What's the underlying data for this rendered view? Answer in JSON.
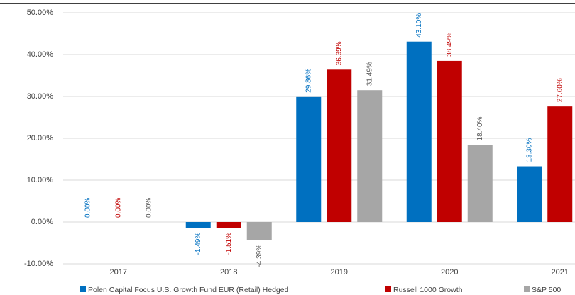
{
  "chart_data": {
    "type": "bar",
    "categories": [
      "2017",
      "2018",
      "2019",
      "2020",
      "2021"
    ],
    "series": [
      {
        "name": "Polen Capital Focus U.S. Growth Fund EUR (Retail) Hedged",
        "color": "#0070c0",
        "values": [
          0,
          -1.49,
          29.86,
          43.1,
          13.3
        ],
        "value_labels": [
          "0.00%",
          "-1.49%",
          "29.86%",
          "43.10%",
          "13.30%"
        ]
      },
      {
        "name": "Russell 1000 Growth",
        "color": "#c00000",
        "values": [
          0,
          -1.51,
          36.39,
          38.49,
          27.6
        ],
        "value_labels": [
          "0.00%",
          "-1.51%",
          "36.39%",
          "38.49%",
          "27.60%"
        ]
      },
      {
        "name": "S&P 500",
        "color": "#a6a6a6",
        "values": [
          0,
          -4.39,
          31.49,
          18.4,
          null
        ],
        "value_labels": [
          "0.00%",
          "-4.39%",
          "31.49%",
          "18.40%",
          null
        ]
      }
    ],
    "ylim": [
      -10,
      50
    ],
    "yticks": [
      {
        "value": -10,
        "label": "-10.00%"
      },
      {
        "value": 0,
        "label": "0.00%"
      },
      {
        "value": 10,
        "label": "10.00%"
      },
      {
        "value": 20,
        "label": "20.00%"
      },
      {
        "value": 30,
        "label": "30.00%"
      },
      {
        "value": 40,
        "label": "40.00%"
      },
      {
        "value": 50,
        "label": "50.00%"
      }
    ],
    "grid": true
  }
}
